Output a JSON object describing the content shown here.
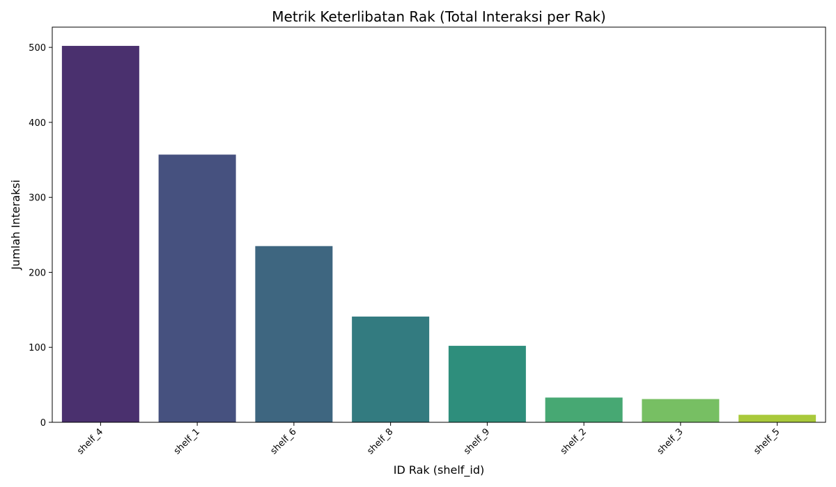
{
  "chart_data": {
    "type": "bar",
    "title": "Metrik Keterlibatan Rak (Total Interaksi per Rak)",
    "xlabel": "ID Rak (shelf_id)",
    "ylabel": "Jumlah Interaksi",
    "categories": [
      "shelf_4",
      "shelf_1",
      "shelf_6",
      "shelf_8",
      "shelf_9",
      "shelf_2",
      "shelf_3",
      "shelf_5"
    ],
    "values": [
      502,
      357,
      235,
      141,
      102,
      33,
      31,
      10
    ],
    "colors": [
      "#4a306e",
      "#46517f",
      "#3e6680",
      "#337b80",
      "#2e8e7c",
      "#47a873",
      "#77bf63",
      "#a9c93b"
    ],
    "ylim": [
      0,
      527
    ],
    "yticks": [
      0,
      100,
      200,
      300,
      400,
      500
    ],
    "ytick_labels": [
      "0",
      "100",
      "200",
      "300",
      "400",
      "500"
    ],
    "grid": false,
    "legend": "none"
  }
}
